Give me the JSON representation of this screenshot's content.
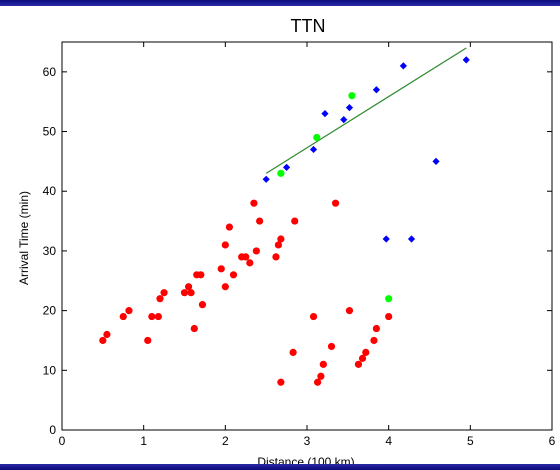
{
  "chart_data": {
    "type": "scatter",
    "title": "TTN",
    "xlabel": "Distance  (100 km)",
    "ylabel": "Arrival Time (min)",
    "xlim": [
      0,
      6
    ],
    "ylim": [
      0,
      65
    ],
    "xticks": [
      "0",
      "1",
      "2",
      "3",
      "4",
      "5",
      "6"
    ],
    "yticks": [
      "0",
      "10",
      "20",
      "30",
      "40",
      "50",
      "60"
    ],
    "grid": false,
    "series": [
      {
        "color": "#ff0000",
        "marker": "circle",
        "points": [
          [
            0.5,
            15
          ],
          [
            0.55,
            16
          ],
          [
            0.75,
            19
          ],
          [
            0.82,
            20
          ],
          [
            1.05,
            15
          ],
          [
            1.1,
            19
          ],
          [
            1.18,
            19
          ],
          [
            1.2,
            22
          ],
          [
            1.25,
            23
          ],
          [
            1.5,
            23
          ],
          [
            1.55,
            24
          ],
          [
            1.58,
            23
          ],
          [
            1.62,
            17
          ],
          [
            1.65,
            26
          ],
          [
            1.7,
            26
          ],
          [
            1.72,
            21
          ],
          [
            1.95,
            27
          ],
          [
            2.0,
            24
          ],
          [
            2.0,
            31
          ],
          [
            2.05,
            34
          ],
          [
            2.1,
            26
          ],
          [
            2.2,
            29
          ],
          [
            2.25,
            29
          ],
          [
            2.3,
            28
          ],
          [
            2.35,
            38
          ],
          [
            2.38,
            30
          ],
          [
            2.42,
            35
          ],
          [
            2.62,
            29
          ],
          [
            2.65,
            31
          ],
          [
            2.68,
            32
          ],
          [
            2.85,
            35
          ],
          [
            2.68,
            8
          ],
          [
            2.83,
            13
          ],
          [
            3.08,
            19
          ],
          [
            3.13,
            8
          ],
          [
            3.17,
            9
          ],
          [
            3.2,
            11
          ],
          [
            3.3,
            14
          ],
          [
            3.35,
            38
          ],
          [
            3.52,
            20
          ],
          [
            3.63,
            11
          ],
          [
            3.68,
            12
          ],
          [
            3.72,
            13
          ],
          [
            3.82,
            15
          ],
          [
            3.85,
            17
          ],
          [
            4.0,
            19
          ]
        ]
      },
      {
        "color": "#0000ff",
        "marker": "diamond",
        "points": [
          [
            2.5,
            42
          ],
          [
            2.75,
            44
          ],
          [
            3.08,
            47
          ],
          [
            3.22,
            53
          ],
          [
            3.45,
            52
          ],
          [
            3.52,
            54
          ],
          [
            3.85,
            57
          ],
          [
            4.18,
            61
          ],
          [
            4.95,
            62
          ],
          [
            4.58,
            45
          ],
          [
            3.97,
            32
          ],
          [
            4.28,
            32
          ]
        ]
      },
      {
        "color": "#00ff00",
        "marker": "circle",
        "points": [
          [
            2.68,
            43
          ],
          [
            3.12,
            49
          ],
          [
            3.55,
            56
          ],
          [
            4.0,
            22
          ]
        ]
      }
    ],
    "fit_line": {
      "color": "#2e8b2e",
      "x": [
        2.5,
        4.95
      ],
      "y": [
        43,
        64
      ]
    }
  }
}
